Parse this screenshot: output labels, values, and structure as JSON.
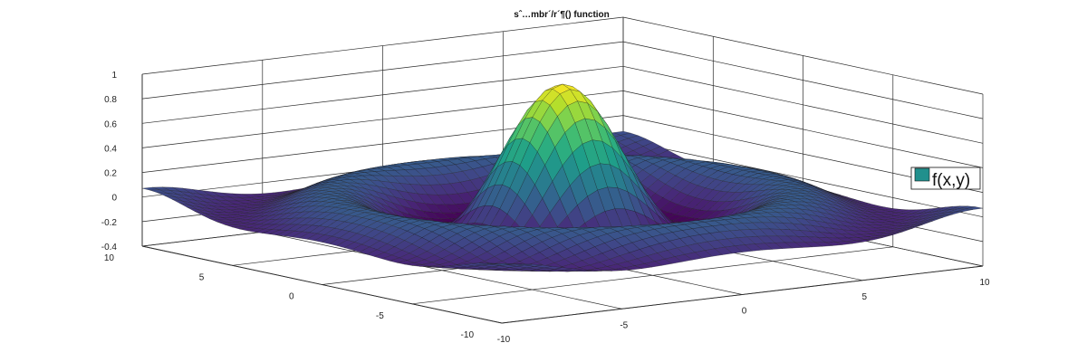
{
  "colors": {
    "surface_accent": "#21908d",
    "gridline": "#2a2a2a",
    "edge": "#1e1e1e"
  },
  "chart_data": {
    "type": "surface",
    "title": "sˆ…mbr´/r´¶() function",
    "function": "sin(r)/r",
    "x": {
      "min": -10,
      "max": 10,
      "ticks": [
        -10,
        -5,
        0,
        5,
        10
      ]
    },
    "y": {
      "min": -10,
      "max": 10,
      "ticks": [
        -10,
        -5,
        0,
        5,
        10
      ]
    },
    "z": {
      "min": -0.4,
      "max": 1,
      "ticks": [
        -0.4,
        -0.2,
        0,
        0.2,
        0.4,
        0.6,
        0.8,
        1
      ]
    },
    "grid": true,
    "colormap": "viridis",
    "legend": {
      "placement": "right",
      "entries": [
        {
          "label": "f(x,y)",
          "color": "#21908d"
        }
      ]
    }
  }
}
